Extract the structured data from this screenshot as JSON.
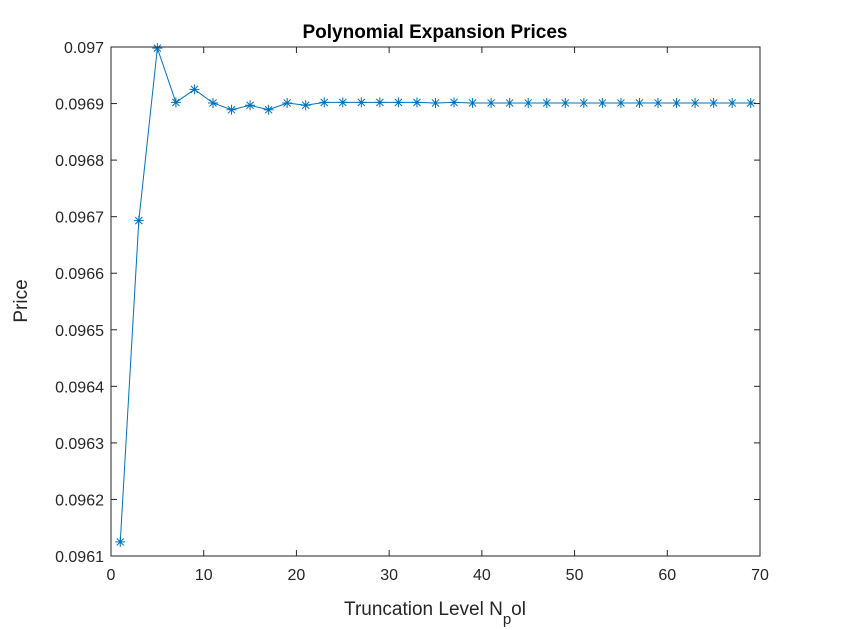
{
  "chart_data": {
    "type": "line",
    "title": "Polynomial Expansion Prices",
    "xlabel": {
      "main": "Truncation Level N",
      "subscript": "p",
      "suffix": "ol"
    },
    "ylabel": "Price",
    "xlim": [
      0,
      70
    ],
    "ylim": [
      0.0961,
      0.097
    ],
    "xticks": [
      0,
      10,
      20,
      30,
      40,
      50,
      60,
      70
    ],
    "xtick_labels": [
      "0",
      "10",
      "20",
      "30",
      "40",
      "50",
      "60",
      "70"
    ],
    "yticks": [
      0.0961,
      0.0962,
      0.0963,
      0.0964,
      0.0965,
      0.0966,
      0.0967,
      0.0968,
      0.0969,
      0.097
    ],
    "ytick_labels": [
      "0.0961",
      "0.0962",
      "0.0963",
      "0.0964",
      "0.0965",
      "0.0966",
      "0.0967",
      "0.0968",
      "0.0969",
      "0.097"
    ],
    "grid": false,
    "marker": "asterisk",
    "color": "#0072BD",
    "series": [
      {
        "x": [
          1,
          3,
          5,
          7,
          9,
          11,
          13,
          15,
          17,
          19,
          21,
          23,
          25,
          27,
          29,
          31,
          33,
          35,
          37,
          39,
          41,
          43,
          45,
          47,
          49,
          51,
          53,
          55,
          57,
          59,
          61,
          63,
          65,
          67,
          69
        ],
        "values": [
          0.096125,
          0.096693,
          0.096998,
          0.096902,
          0.096925,
          0.096901,
          0.096889,
          0.096897,
          0.096889,
          0.096901,
          0.096897,
          0.096902,
          0.096902,
          0.096902,
          0.096902,
          0.096902,
          0.096902,
          0.096901,
          0.096902,
          0.096901,
          0.096901,
          0.096901,
          0.096901,
          0.096901,
          0.096901,
          0.096901,
          0.096901,
          0.096901,
          0.096901,
          0.096901,
          0.096901,
          0.096901,
          0.096901,
          0.096901,
          0.096901
        ]
      }
    ]
  }
}
